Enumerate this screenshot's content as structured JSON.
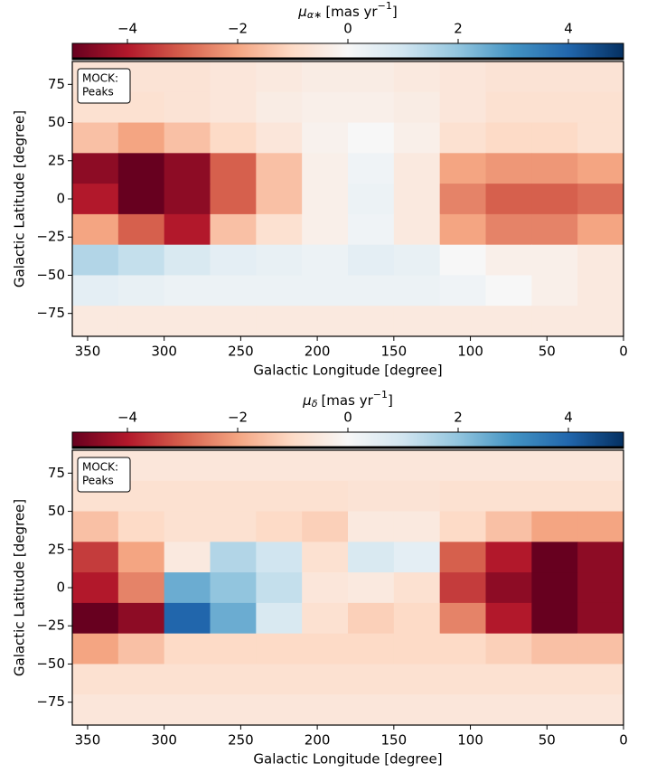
{
  "chart_data": [
    {
      "type": "heatmap",
      "colorbar_label": {
        "symbol": "μ",
        "subscript": "α∗",
        "unit": "[mas yr",
        "superscript": "−1",
        "unit_end": "]"
      },
      "xlabel": "Galactic Longitude [degree]",
      "ylabel": "Galactic Latitude [degree]",
      "annotation": [
        "MOCK:",
        "Peaks"
      ],
      "x_edges": [
        360,
        330,
        300,
        270,
        240,
        210,
        180,
        150,
        120,
        90,
        60,
        30,
        0
      ],
      "y_edges": [
        90,
        70,
        50,
        30,
        10,
        -10,
        -30,
        -50,
        -70,
        -90
      ],
      "values": [
        [
          -0.7,
          -0.7,
          -0.7,
          -0.6,
          -0.5,
          -0.4,
          -0.4,
          -0.5,
          -0.6,
          -0.7,
          -0.7,
          -0.7
        ],
        [
          -0.8,
          -0.8,
          -0.7,
          -0.6,
          -0.4,
          -0.3,
          -0.3,
          -0.4,
          -0.6,
          -0.8,
          -0.8,
          -0.8
        ],
        [
          -1.5,
          -2,
          -1.5,
          -1,
          -0.6,
          -0.2,
          0,
          -0.3,
          -0.8,
          -1,
          -1,
          -0.8
        ],
        [
          -4.5,
          -5,
          -4.5,
          -3,
          -1.5,
          -0.3,
          0.2,
          -0.5,
          -2,
          -2.2,
          -2.2,
          -2
        ],
        [
          -4,
          -5,
          -4.5,
          -3,
          -1.5,
          -0.3,
          0.3,
          -0.5,
          -2.5,
          -3,
          -3,
          -2.8
        ],
        [
          -2,
          -3,
          -4,
          -1.5,
          -0.8,
          -0.3,
          0.2,
          -0.5,
          -2,
          -2.5,
          -2.5,
          -2
        ],
        [
          1.5,
          1.2,
          0.8,
          0.5,
          0.4,
          0.3,
          0.5,
          0.4,
          0,
          -0.3,
          -0.3,
          -0.5
        ],
        [
          0.5,
          0.4,
          0.3,
          0.3,
          0.3,
          0.3,
          0.3,
          0.3,
          0.2,
          0,
          -0.3,
          -0.5
        ],
        [
          -0.5,
          -0.5,
          -0.5,
          -0.5,
          -0.5,
          -0.5,
          -0.5,
          -0.5,
          -0.5,
          -0.5,
          -0.5,
          -0.5
        ]
      ],
      "clim": [
        -5,
        5
      ],
      "colormap": [
        "#67001f",
        "#b2182b",
        "#d6604d",
        "#f4a582",
        "#fddbc7",
        "#f7f7f7",
        "#d1e5f0",
        "#92c5de",
        "#4393c3",
        "#2166ac",
        "#053061"
      ],
      "cticks": [
        {
          "value": -4,
          "label": "−4"
        },
        {
          "value": -2,
          "label": "−2"
        },
        0,
        2,
        4
      ],
      "xlim": [
        360,
        0
      ],
      "xticks": [
        350,
        300,
        250,
        200,
        150,
        100,
        50,
        0
      ],
      "ylim": [
        -90,
        90
      ],
      "yticks": [
        {
          "value": -75,
          "label": "−75"
        },
        {
          "value": -50,
          "label": "−50"
        },
        {
          "value": -25,
          "label": "−25"
        },
        0,
        25,
        50,
        75
      ]
    },
    {
      "type": "heatmap",
      "colorbar_label": {
        "symbol": "μ",
        "subscript": "δ",
        "unit": "[mas yr",
        "superscript": "−1",
        "unit_end": "]"
      },
      "xlabel": "Galactic Longitude [degree]",
      "ylabel": "Galactic Latitude [degree]",
      "annotation": [
        "MOCK:",
        "Peaks"
      ],
      "x_edges": [
        360,
        330,
        300,
        270,
        240,
        210,
        180,
        150,
        120,
        90,
        60,
        30,
        0
      ],
      "y_edges": [
        90,
        70,
        50,
        30,
        10,
        -10,
        -30,
        -50,
        -70,
        -90
      ],
      "values": [
        [
          -0.6,
          -0.6,
          -0.6,
          -0.6,
          -0.6,
          -0.6,
          -0.6,
          -0.6,
          -0.6,
          -0.6,
          -0.6,
          -0.6
        ],
        [
          -0.8,
          -0.8,
          -0.8,
          -0.8,
          -0.8,
          -0.8,
          -0.7,
          -0.7,
          -0.8,
          -0.8,
          -0.8,
          -0.8
        ],
        [
          -1.5,
          -1,
          -0.8,
          -0.8,
          -1,
          -1.2,
          -0.5,
          -0.5,
          -1,
          -1.5,
          -2,
          -2
        ],
        [
          -3.5,
          -2,
          -0.5,
          1.5,
          1,
          -0.8,
          0.8,
          0.5,
          -3,
          -4,
          -5,
          -4.5
        ],
        [
          -4,
          -2.5,
          2.5,
          2,
          1.2,
          -0.6,
          -0.5,
          -0.8,
          -3.5,
          -4.5,
          -5,
          -4.5
        ],
        [
          -5,
          -4.5,
          4,
          2.5,
          0.8,
          -0.8,
          -1.2,
          -1,
          -2.5,
          -4,
          -5,
          -4.5
        ],
        [
          -2,
          -1.5,
          -1,
          -1,
          -1,
          -1,
          -1,
          -1,
          -1,
          -1.2,
          -1.5,
          -1.5
        ],
        [
          -0.8,
          -0.8,
          -0.8,
          -0.8,
          -0.8,
          -0.8,
          -0.8,
          -0.8,
          -0.8,
          -0.8,
          -0.8,
          -0.8
        ],
        [
          -0.6,
          -0.6,
          -0.6,
          -0.6,
          -0.6,
          -0.6,
          -0.6,
          -0.6,
          -0.6,
          -0.6,
          -0.6,
          -0.6
        ]
      ],
      "clim": [
        -5,
        5
      ],
      "colormap": [
        "#67001f",
        "#b2182b",
        "#d6604d",
        "#f4a582",
        "#fddbc7",
        "#f7f7f7",
        "#d1e5f0",
        "#92c5de",
        "#4393c3",
        "#2166ac",
        "#053061"
      ],
      "cticks": [
        {
          "value": -4,
          "label": "−4"
        },
        {
          "value": -2,
          "label": "−2"
        },
        0,
        2,
        4
      ],
      "xlim": [
        360,
        0
      ],
      "xticks": [
        350,
        300,
        250,
        200,
        150,
        100,
        50,
        0
      ],
      "ylim": [
        -90,
        90
      ],
      "yticks": [
        {
          "value": -75,
          "label": "−75"
        },
        {
          "value": -50,
          "label": "−50"
        },
        {
          "value": -25,
          "label": "−25"
        },
        0,
        25,
        50,
        75
      ]
    }
  ]
}
